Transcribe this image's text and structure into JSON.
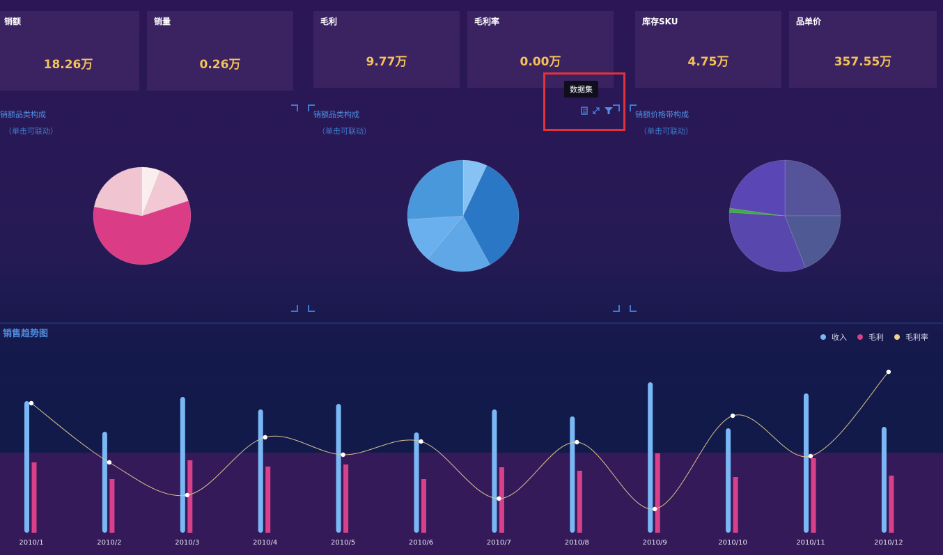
{
  "kpis": [
    {
      "label": "销额",
      "value": "18.26万"
    },
    {
      "label": "销量",
      "value": "0.26万"
    },
    {
      "label": "毛利",
      "value": "9.77万"
    },
    {
      "label": "毛利率",
      "value": "0.00万"
    },
    {
      "label": "库存SKU",
      "value": "4.75万"
    },
    {
      "label": "品单价",
      "value": "357.55万"
    }
  ],
  "panels": [
    {
      "title": "销额品类构成",
      "subtitle": "（单击可联动）"
    },
    {
      "title": "销额品类构成",
      "subtitle": "（单击可联动）"
    },
    {
      "title": "销额价格带构成",
      "subtitle": "（单击可联动）"
    }
  ],
  "toolbar": {
    "tooltip": "数据集",
    "icons": [
      "dataset-icon",
      "expand-icon",
      "filter-icon"
    ]
  },
  "trend": {
    "title": "销售趋势图"
  },
  "colors": {
    "revenue": "#7ab8f5",
    "profit": "#d8418a",
    "margin": "#d9c38f",
    "kpi_value": "#f4c25a",
    "title_blue": "#4f8ee0"
  },
  "chart_data": [
    {
      "type": "pie",
      "slices": [
        {
          "value": 6,
          "color": "#fbeeee"
        },
        {
          "value": 14,
          "color": "#f2c8d4"
        },
        {
          "value": 58,
          "color": "#da3d86"
        },
        {
          "value": 22,
          "color": "#f1c4d2"
        }
      ]
    },
    {
      "type": "pie",
      "slices": [
        {
          "value": 7,
          "color": "#86c2f3"
        },
        {
          "value": 35,
          "color": "#2a77c6"
        },
        {
          "value": 19,
          "color": "#5fa7e6"
        },
        {
          "value": 13,
          "color": "#6bb0ee"
        },
        {
          "value": 26,
          "color": "#4a98dc"
        }
      ]
    },
    {
      "type": "pie",
      "slices": [
        {
          "value": 25,
          "color": "#55549a"
        },
        {
          "value": 19,
          "color": "#4f5a94"
        },
        {
          "value": 32,
          "color": "#5848ad"
        },
        {
          "value": 1.2,
          "color": "#3fae3d"
        },
        {
          "value": 22.8,
          "color": "#5a46b4"
        }
      ]
    },
    {
      "type": "bar+line",
      "categories": [
        "2010/1",
        "2010/2",
        "2010/3",
        "2010/4",
        "2010/5",
        "2010/6",
        "2010/7",
        "2010/8",
        "2010/9",
        "2010/10",
        "2010/11",
        "2010/12"
      ],
      "series": [
        {
          "name": "收入",
          "type": "bar",
          "values": [
            189,
            145,
            195,
            177,
            185,
            144,
            177,
            167,
            216,
            150,
            200,
            152
          ]
        },
        {
          "name": "毛利",
          "type": "bar",
          "values": [
            101,
            77,
            104,
            95,
            98,
            77,
            94,
            89,
            114,
            80,
            107,
            82
          ]
        },
        {
          "name": "毛利率",
          "type": "line",
          "values": [
            186,
            101,
            54,
            137,
            112,
            131,
            49,
            130,
            34,
            168,
            110,
            231
          ]
        }
      ],
      "ylim": [
        0,
        240
      ],
      "legend_position": "top-right"
    }
  ]
}
